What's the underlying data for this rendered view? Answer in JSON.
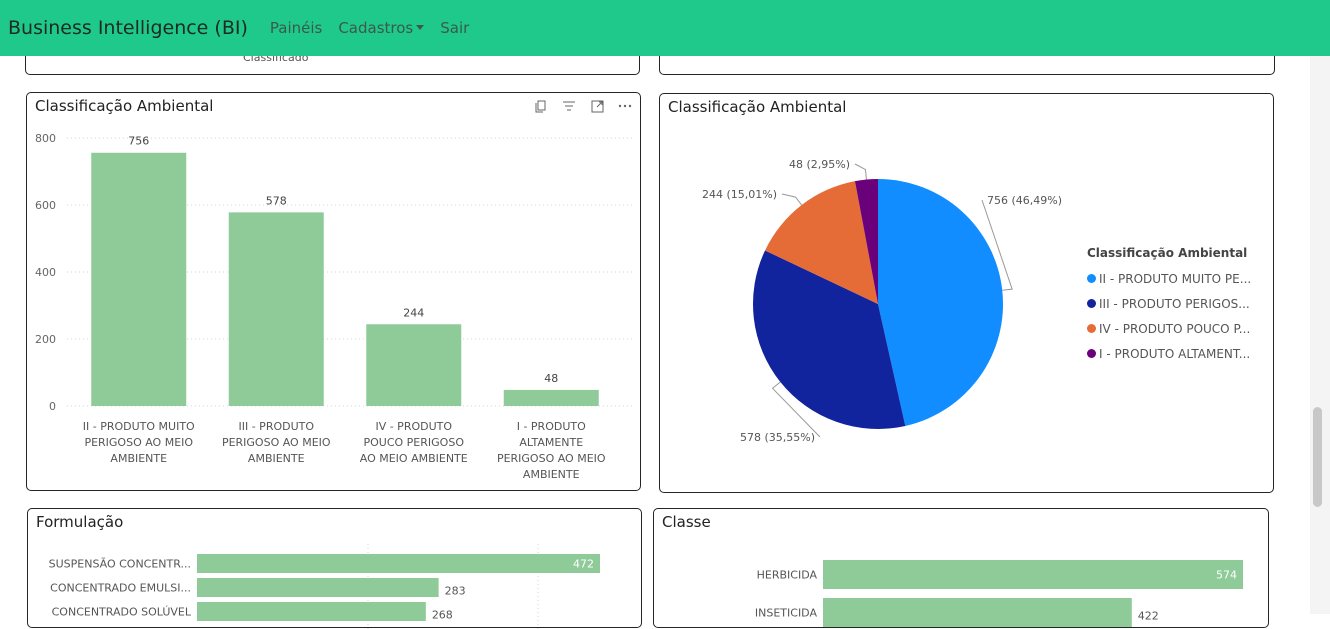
{
  "navbar": {
    "brand": "Business Intelligence (BI)",
    "links": [
      "Painéis",
      "Cadastros",
      "Sair"
    ]
  },
  "top_left_panel": {
    "fragment_text": "Classificado"
  },
  "bar_panel": {
    "title": "Classificação Ambiental",
    "header_icons": [
      "copy-icon",
      "filter-icon",
      "focus-mode-icon",
      "more-options-icon"
    ]
  },
  "pie_panel": {
    "title": "Classificação Ambiental",
    "legend_title": "Classificação Ambiental",
    "legend_items": [
      {
        "label": "II - PRODUTO MUITO PE...",
        "color": "#118dff"
      },
      {
        "label": "III - PRODUTO PERIGOS...",
        "color": "#12239e"
      },
      {
        "label": "IV - PRODUTO POUCO P...",
        "color": "#e66c37"
      },
      {
        "label": "I - PRODUTO ALTAMENT...",
        "color": "#6b007b"
      }
    ]
  },
  "formulacao_panel": {
    "title": "Formulação"
  },
  "classe_panel": {
    "title": "Classe"
  },
  "chart_data": [
    {
      "type": "bar",
      "title": "Classificação Ambiental",
      "categories": [
        [
          "II - PRODUTO MUITO",
          "PERIGOSO AO MEIO",
          "AMBIENTE"
        ],
        [
          "III - PRODUTO",
          "PERIGOSO AO MEIO",
          "AMBIENTE"
        ],
        [
          "IV - PRODUTO",
          "POUCO PERIGOSO",
          "AO MEIO AMBIENTE"
        ],
        [
          "I - PRODUTO",
          "ALTAMENTE",
          "PERIGOSO AO MEIO",
          "AMBIENTE"
        ]
      ],
      "values": [
        756,
        578,
        244,
        48
      ],
      "ylim": [
        0,
        800
      ],
      "yticks": [
        "0",
        "200",
        "400",
        "600",
        "800"
      ],
      "grid": true,
      "color": "#8ecb98"
    },
    {
      "type": "pie",
      "title": "Classificação Ambiental",
      "values": [
        756,
        578,
        244,
        48
      ],
      "labels": [
        "756 (46,49%)",
        "578 (35,55%)",
        "244 (15,01%)",
        "48 (2,95%)"
      ],
      "colors": [
        "#118dff",
        "#12239e",
        "#e66c37",
        "#6b007b"
      ],
      "legend": "right"
    },
    {
      "type": "bar",
      "orientation": "horizontal",
      "title": "Formulação",
      "categories": [
        "SUSPENSÃO CONCENTR...",
        "CONCENTRADO EMULSI...",
        "CONCENTRADO SOLÚVEL"
      ],
      "values": [
        472,
        283,
        268
      ],
      "value_labels": [
        "472",
        "283",
        "268"
      ],
      "color": "#8ecb98"
    },
    {
      "type": "bar",
      "orientation": "horizontal",
      "title": "Classe",
      "categories": [
        "HERBICIDA",
        "INSETICIDA"
      ],
      "values": [
        574,
        422
      ],
      "value_labels": [
        "574",
        "422"
      ],
      "color": "#8ecb98"
    }
  ]
}
